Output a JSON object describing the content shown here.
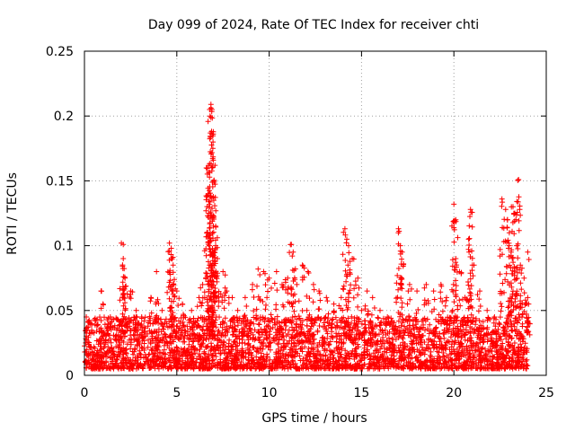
{
  "chart_data": {
    "type": "scatter",
    "title": "Day 099 of 2024, Rate Of TEC Index for receiver chti",
    "xlabel": "GPS time / hours",
    "ylabel": "ROTI / TECUs",
    "xlim": [
      0,
      25
    ],
    "ylim": [
      0,
      0.25
    ],
    "xticks": [
      0,
      5,
      10,
      15,
      20,
      25
    ],
    "xtick_labels": [
      "0",
      "5",
      "10",
      "15",
      "20",
      "25"
    ],
    "yticks": [
      0,
      0.05,
      0.1,
      0.15,
      0.2,
      0.25
    ],
    "ytick_labels": [
      "0",
      "0.05",
      "0.1",
      "0.15",
      "0.2",
      "0.25"
    ],
    "grid": true,
    "marker": "+",
    "series_color": "#ff0000",
    "background_band": {
      "x_range": [
        0,
        24
      ],
      "y_range": [
        0.005,
        0.03
      ],
      "description": "dense band of points across the day"
    },
    "series": [
      {
        "name": "ROTI",
        "points": [
          [
            0.1,
            0.045
          ],
          [
            0.3,
            0.04
          ],
          [
            0.9,
            0.065
          ],
          [
            1.0,
            0.055
          ],
          [
            1.4,
            0.045
          ],
          [
            2.0,
            0.102
          ],
          [
            2.1,
            0.101
          ],
          [
            2.1,
            0.09
          ],
          [
            2.2,
            0.075
          ],
          [
            2.5,
            0.065
          ],
          [
            2.8,
            0.05
          ],
          [
            3.1,
            0.045
          ],
          [
            3.6,
            0.06
          ],
          [
            3.9,
            0.08
          ],
          [
            4.2,
            0.05
          ],
          [
            4.6,
            0.102
          ],
          [
            4.7,
            0.098
          ],
          [
            4.7,
            0.09
          ],
          [
            4.8,
            0.085
          ],
          [
            4.8,
            0.07
          ],
          [
            5.0,
            0.065
          ],
          [
            5.3,
            0.055
          ],
          [
            5.8,
            0.05
          ],
          [
            6.2,
            0.06
          ],
          [
            6.4,
            0.07
          ],
          [
            6.6,
            0.16
          ],
          [
            6.7,
            0.14
          ],
          [
            6.75,
            0.125
          ],
          [
            6.8,
            0.2
          ],
          [
            6.85,
            0.209
          ],
          [
            6.9,
            0.205
          ],
          [
            6.9,
            0.186
          ],
          [
            6.95,
            0.175
          ],
          [
            7.0,
            0.15
          ],
          [
            7.0,
            0.135
          ],
          [
            7.1,
            0.115
          ],
          [
            7.1,
            0.1
          ],
          [
            7.2,
            0.09
          ],
          [
            7.5,
            0.08
          ],
          [
            7.7,
            0.065
          ],
          [
            8.0,
            0.06
          ],
          [
            8.3,
            0.05
          ],
          [
            8.7,
            0.06
          ],
          [
            9.1,
            0.07
          ],
          [
            9.4,
            0.082
          ],
          [
            9.7,
            0.08
          ],
          [
            10.0,
            0.075
          ],
          [
            10.4,
            0.08
          ],
          [
            10.7,
            0.07
          ],
          [
            11.0,
            0.075
          ],
          [
            11.2,
            0.101
          ],
          [
            11.3,
            0.095
          ],
          [
            11.5,
            0.07
          ],
          [
            11.8,
            0.085
          ],
          [
            12.1,
            0.08
          ],
          [
            12.4,
            0.07
          ],
          [
            12.7,
            0.065
          ],
          [
            13.1,
            0.06
          ],
          [
            13.5,
            0.055
          ],
          [
            13.9,
            0.06
          ],
          [
            14.1,
            0.113
          ],
          [
            14.2,
            0.105
          ],
          [
            14.3,
            0.1
          ],
          [
            14.5,
            0.09
          ],
          [
            14.8,
            0.075
          ],
          [
            15.0,
            0.05
          ],
          [
            15.3,
            0.065
          ],
          [
            15.6,
            0.06
          ],
          [
            16.0,
            0.05
          ],
          [
            16.4,
            0.045
          ],
          [
            17.0,
            0.113
          ],
          [
            17.1,
            0.1
          ],
          [
            17.2,
            0.095
          ],
          [
            17.6,
            0.07
          ],
          [
            18.0,
            0.065
          ],
          [
            18.5,
            0.07
          ],
          [
            18.9,
            0.065
          ],
          [
            19.3,
            0.07
          ],
          [
            19.6,
            0.06
          ],
          [
            20.0,
            0.132
          ],
          [
            20.1,
            0.12
          ],
          [
            20.1,
            0.09
          ],
          [
            20.3,
            0.08
          ],
          [
            20.6,
            0.06
          ],
          [
            20.8,
            0.105
          ],
          [
            20.9,
            0.128
          ],
          [
            21.0,
            0.085
          ],
          [
            21.4,
            0.065
          ],
          [
            21.8,
            0.05
          ],
          [
            22.2,
            0.045
          ],
          [
            22.6,
            0.136
          ],
          [
            22.8,
            0.128
          ],
          [
            22.9,
            0.12
          ],
          [
            23.0,
            0.11
          ],
          [
            23.1,
            0.095
          ],
          [
            23.2,
            0.13
          ],
          [
            23.3,
            0.125
          ],
          [
            23.4,
            0.1
          ],
          [
            23.5,
            0.151
          ],
          [
            23.6,
            0.085
          ],
          [
            23.8,
            0.075
          ],
          [
            24.0,
            0.095
          ],
          [
            24.0,
            0.06
          ]
        ]
      }
    ]
  }
}
